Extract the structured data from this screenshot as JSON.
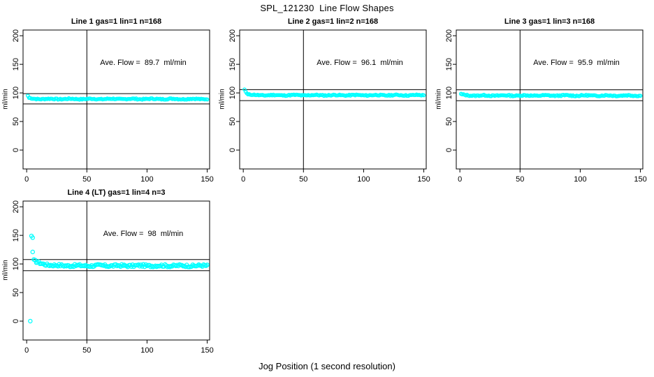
{
  "page": {
    "main_title": "SPL_121230  Line Flow Shapes",
    "x_axis_label": "Jog Position (1 second resolution)",
    "background_color": "#FFFFFF",
    "point_color": "#00FFFF",
    "line_color": "#000000"
  },
  "chart_data": [
    {
      "type": "scatter",
      "title": "Line 1 gas=1 lin=1 n=168",
      "annotation": "Ave. Flow =  89.7  ml/min",
      "ave_flow_ml_min": 89.7,
      "ylabel": "ml/min",
      "x_ticks": [
        0,
        50,
        100,
        150
      ],
      "y_ticks": [
        0,
        50,
        100,
        150,
        200
      ],
      "xlim": [
        -3,
        152
      ],
      "ylim": [
        -33,
        210
      ],
      "vline_x": 50,
      "hlines": [
        98.7,
        80.7
      ],
      "marker": "open-circle",
      "marker_color": "#00FFFF",
      "extra_points": [
        [
          1,
          95.0
        ],
        [
          2,
          91.5
        ]
      ],
      "band": {
        "x_from": 2,
        "x_to": 150,
        "step": 1,
        "center": 89.4,
        "start_boost": 1.5,
        "boost_decay": 3,
        "amp": 0.9,
        "seed": 7
      }
    },
    {
      "type": "scatter",
      "title": "Line 2 gas=1 lin=2 n=168",
      "annotation": "Ave. Flow =  96.1  ml/min",
      "ave_flow_ml_min": 96.1,
      "ylabel": "ml/min",
      "x_ticks": [
        0,
        50,
        100,
        150
      ],
      "y_ticks": [
        0,
        50,
        100,
        150,
        200
      ],
      "xlim": [
        -3,
        152
      ],
      "ylim": [
        -33,
        210
      ],
      "vline_x": 50,
      "hlines": [
        105.7,
        86.5
      ],
      "marker": "open-circle",
      "marker_color": "#00FFFF",
      "extra_points": [
        [
          1,
          106.0
        ],
        [
          2,
          102.0
        ],
        [
          3,
          99.0
        ],
        [
          4,
          97.5
        ]
      ],
      "band": {
        "x_from": 4,
        "x_to": 150,
        "step": 1,
        "center": 96.0,
        "start_boost": 1.2,
        "boost_decay": 4,
        "amp": 0.9,
        "seed": 11
      }
    },
    {
      "type": "scatter",
      "title": "Line 3 gas=1 lin=3 n=168",
      "annotation": "Ave. Flow =  95.9  ml/min",
      "ave_flow_ml_min": 95.9,
      "ylabel": "ml/min",
      "x_ticks": [
        0,
        50,
        100,
        150
      ],
      "y_ticks": [
        0,
        50,
        100,
        150,
        200
      ],
      "xlim": [
        -3,
        152
      ],
      "ylim": [
        -33,
        210
      ],
      "vline_x": 50,
      "hlines": [
        105.5,
        86.3
      ],
      "marker": "open-circle",
      "marker_color": "#00FFFF",
      "extra_points": [
        [
          1,
          98.5
        ]
      ],
      "band": {
        "x_from": 1,
        "x_to": 150,
        "step": 1,
        "center": 95.4,
        "start_boost": 2.0,
        "boost_decay": 3,
        "amp": 1.0,
        "seed": 13
      }
    },
    {
      "type": "scatter",
      "title": "Line 4 (LT) gas=1 lin=4 n=3",
      "annotation": "Ave. Flow =  98  ml/min",
      "ave_flow_ml_min": 98,
      "ylabel": "ml/min",
      "x_ticks": [
        0,
        50,
        100,
        150
      ],
      "y_ticks": [
        0,
        50,
        100,
        150,
        200
      ],
      "xlim": [
        -3,
        152
      ],
      "ylim": [
        -33,
        210
      ],
      "vline_x": 50,
      "hlines": [
        107.8,
        88.2
      ],
      "marker": "open-circle",
      "marker_color": "#00FFFF",
      "extra_points": [
        [
          3,
          0.0
        ],
        [
          4,
          149.0
        ],
        [
          5,
          146.0
        ],
        [
          5,
          121.0
        ]
      ],
      "band": {
        "x_from": 6,
        "x_to": 150,
        "step": 1,
        "center": 97.0,
        "start_boost": 9.0,
        "boost_decay": 7,
        "amp": 2.1,
        "seed": 17
      }
    }
  ]
}
